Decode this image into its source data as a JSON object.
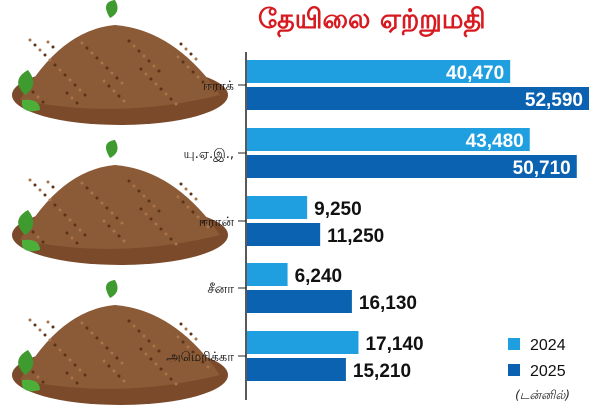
{
  "chart_data": {
    "type": "bar",
    "orientation": "horizontal",
    "title": "தேயிலை ஏற்றுமதி",
    "unit_note": "(டன்னில்)",
    "categories": [
      "ஈராக்",
      "யு.ஏ.இ.,",
      "ஈரான்",
      "சீனா",
      "அமெரிக்கா"
    ],
    "series": [
      {
        "name": "2024",
        "color": "#1f9fe0",
        "values": [
          40470,
          43480,
          9250,
          6240,
          17140
        ]
      },
      {
        "name": "2025",
        "color": "#0a62b0",
        "values": [
          52590,
          50710,
          11250,
          16130,
          15210
        ]
      }
    ],
    "value_labels": [
      [
        "40,470",
        "43,480",
        "9,250",
        "6,240",
        "17,140"
      ],
      [
        "52,590",
        "50,710",
        "11,250",
        "16,130",
        "15,210"
      ]
    ],
    "legend_placement": "bottom-right",
    "grid": false
  },
  "decoration": {
    "image": "tea-powder-with-leaves",
    "count": 3
  }
}
